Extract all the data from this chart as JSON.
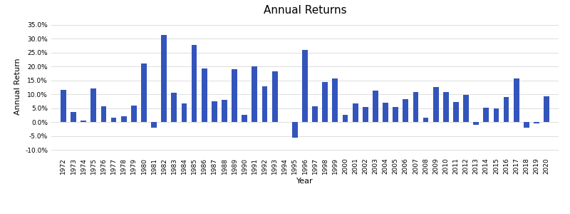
{
  "title": "Annual Returns",
  "xlabel": "Year",
  "ylabel": "Annual Return",
  "bar_color": "#3355bb",
  "background_color": "#ffffff",
  "grid_color": "#dddddd",
  "years": [
    1972,
    1973,
    1974,
    1975,
    1976,
    1977,
    1978,
    1979,
    1980,
    1981,
    1982,
    1983,
    1984,
    1985,
    1986,
    1987,
    1988,
    1989,
    1990,
    1991,
    1992,
    1993,
    1994,
    1995,
    1996,
    1997,
    1998,
    1999,
    2000,
    2001,
    2002,
    2003,
    2004,
    2005,
    2006,
    2007,
    2008,
    2009,
    2010,
    2011,
    2012,
    2013,
    2014,
    2015,
    2016,
    2017,
    2018,
    2019,
    2020
  ],
  "values": [
    0.116,
    0.037,
    0.006,
    0.122,
    0.057,
    0.016,
    0.021,
    0.059,
    0.21,
    -0.02,
    0.313,
    0.105,
    0.066,
    0.278,
    0.193,
    0.075,
    0.079,
    0.19,
    0.025,
    0.201,
    0.13,
    0.183,
    0.0,
    -0.057,
    0.26,
    0.058,
    0.144,
    0.157,
    0.025,
    0.066,
    0.055,
    0.114,
    0.069,
    0.055,
    0.082,
    0.107,
    0.016,
    0.126,
    0.108,
    0.073,
    0.099,
    -0.01,
    0.052,
    0.049,
    0.09,
    0.157,
    -0.02,
    -0.005,
    0.092
  ],
  "ylim": [
    -0.115,
    0.37
  ],
  "yticks": [
    -0.1,
    -0.05,
    0.0,
    0.05,
    0.1,
    0.15,
    0.2,
    0.25,
    0.3,
    0.35
  ],
  "title_fontsize": 11,
  "label_fontsize": 8,
  "tick_fontsize": 6.5
}
